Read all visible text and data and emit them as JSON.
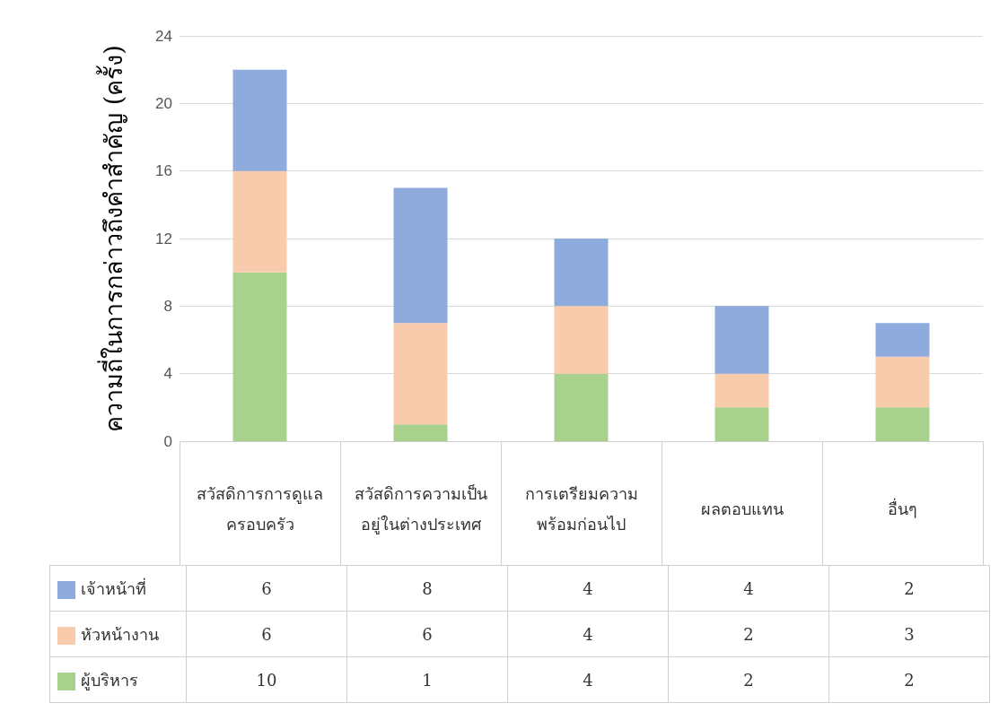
{
  "chart_data": {
    "type": "bar",
    "stacked": true,
    "ylabel": "ความถี่ในการกล่าวถึงคำสำคัญ (ครั้ง)",
    "categories": [
      "สวัสดิการการดูแลครอบครัว",
      "สวัสดิการความเป็นอยู่ในต่างประเทศ",
      "การเตรียมความพร้อมก่อนไป",
      "ผลตอบแทน",
      "อื่นๆ"
    ],
    "series": [
      {
        "name": "ผู้บริหาร",
        "color": "#a9d18e",
        "values": [
          10,
          1,
          4,
          2,
          2
        ]
      },
      {
        "name": "หัวหน้างาน",
        "color": "#f8cbad",
        "values": [
          6,
          6,
          4,
          2,
          3
        ]
      },
      {
        "name": "เจ้าหน้าที่",
        "color": "#8faadc",
        "values": [
          6,
          8,
          4,
          4,
          2
        ]
      }
    ],
    "ylim": [
      0,
      24
    ],
    "yticks": [
      0,
      4,
      8,
      12,
      16,
      20,
      24
    ],
    "grid": "y",
    "legend": "bottom left",
    "data_labels": true
  }
}
